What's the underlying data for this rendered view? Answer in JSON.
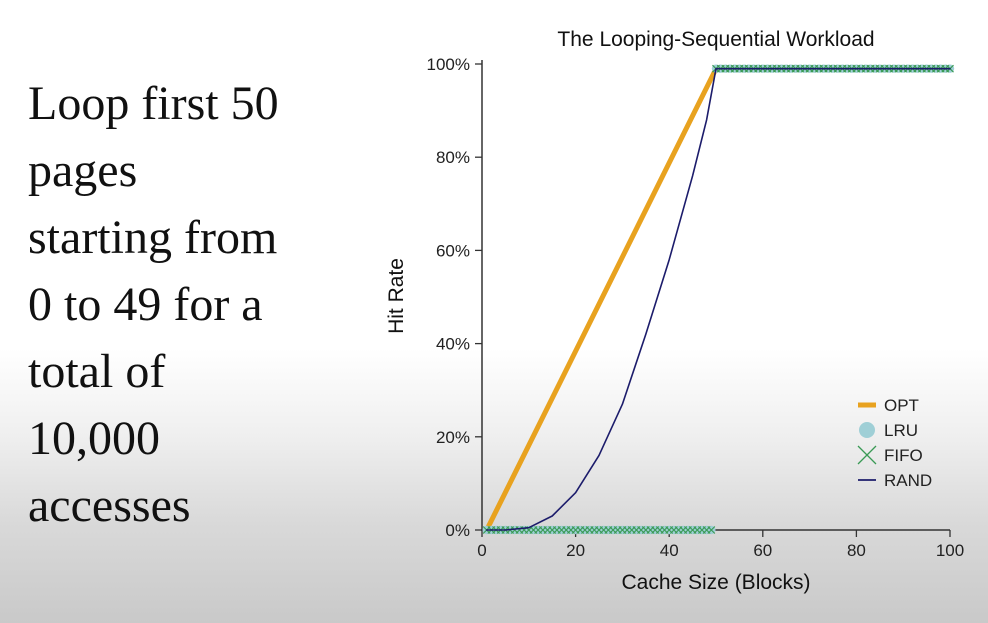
{
  "slide": {
    "body_text": "Loop first 50\npages\nstarting from\n0 to 49 for a\ntotal of\n10,000\naccesses"
  },
  "chart_data": {
    "type": "line",
    "title": "The Looping-Sequential Workload",
    "xlabel": "Cache Size (Blocks)",
    "ylabel": "Hit Rate",
    "xlim": [
      0,
      100
    ],
    "ylim": [
      0,
      1
    ],
    "xticks": [
      0,
      20,
      40,
      60,
      80,
      100
    ],
    "yticks": [
      0,
      0.2,
      0.4,
      0.6,
      0.8,
      1.0
    ],
    "ytick_labels": [
      "0%",
      "20%",
      "40%",
      "60%",
      "80%",
      "100%"
    ],
    "legend_position": "bottom-right",
    "series": [
      {
        "name": "OPT",
        "style": "line-thick",
        "color": "#e8a21f",
        "x": [
          1,
          50,
          100
        ],
        "y": [
          0.0,
          0.99,
          0.99
        ]
      },
      {
        "name": "LRU",
        "style": "dots",
        "color": "#9fcfd6",
        "x": [
          1,
          49,
          50,
          100
        ],
        "y": [
          0.0,
          0.0,
          0.99,
          0.99
        ]
      },
      {
        "name": "FIFO",
        "style": "crosses",
        "color": "#3a9a55",
        "x": [
          1,
          49,
          50,
          100
        ],
        "y": [
          0.0,
          0.0,
          0.99,
          0.99
        ]
      },
      {
        "name": "RAND",
        "style": "line-thin",
        "color": "#1c1c6b",
        "x": [
          1,
          5,
          10,
          15,
          20,
          25,
          30,
          35,
          40,
          45,
          48,
          50,
          100
        ],
        "y": [
          0.0,
          0.0,
          0.005,
          0.03,
          0.08,
          0.16,
          0.27,
          0.42,
          0.58,
          0.76,
          0.88,
          0.99,
          0.99
        ]
      }
    ]
  }
}
